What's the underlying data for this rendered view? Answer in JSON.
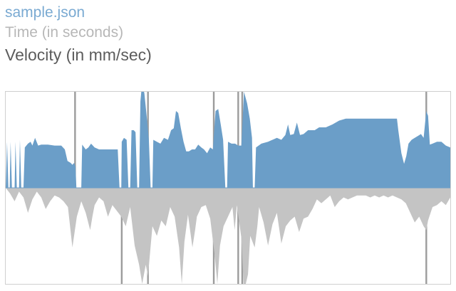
{
  "header": {
    "file_name": "sample.json",
    "x_label": "Time (in seconds)",
    "y_label": "Velocity (in mm/sec)"
  },
  "colors": {
    "positive": "#6b9ec8",
    "negative": "#c4c4c4",
    "spike": "#9c9c9c",
    "file_link": "#7aaad2"
  },
  "chart_data": {
    "type": "area",
    "title": "",
    "xlabel": "Time (in seconds)",
    "ylabel": "Velocity (in mm/sec)",
    "grid": false,
    "legend": "none",
    "xlim": [
      0,
      100
    ],
    "ylim": [
      -100,
      100
    ],
    "series": [
      {
        "sign": "positive",
        "points": [
          [
            0.0,
            0
          ],
          [
            0.3,
            48
          ],
          [
            0.6,
            0
          ],
          [
            0.9,
            0
          ],
          [
            1.1,
            48
          ],
          [
            1.4,
            0
          ],
          [
            2.0,
            0
          ],
          [
            2.2,
            48
          ],
          [
            2.5,
            0
          ],
          [
            3.0,
            0
          ],
          [
            3.2,
            50
          ],
          [
            3.5,
            0
          ],
          [
            4.0,
            0
          ],
          [
            4.3,
            42
          ],
          [
            5.0,
            46
          ],
          [
            5.6,
            48
          ],
          [
            6.0,
            44
          ],
          [
            6.6,
            52
          ],
          [
            7.3,
            44
          ],
          [
            8.0,
            45
          ],
          [
            9.5,
            45
          ],
          [
            11.0,
            44
          ],
          [
            12.5,
            44
          ],
          [
            13.3,
            40
          ],
          [
            13.9,
            28
          ],
          [
            14.6,
            26
          ],
          [
            15.0,
            24
          ],
          [
            15.4,
            26
          ],
          [
            15.7,
            22
          ],
          [
            15.9,
            0
          ],
          [
            17.0,
            0
          ],
          [
            17.2,
            45
          ],
          [
            18.0,
            40
          ],
          [
            18.6,
            42
          ],
          [
            19.2,
            46
          ],
          [
            20.0,
            42
          ],
          [
            21.0,
            40
          ],
          [
            22.5,
            40
          ],
          [
            24.0,
            40
          ],
          [
            25.2,
            40
          ],
          [
            25.6,
            0
          ],
          [
            26.0,
            0
          ],
          [
            26.1,
            48
          ],
          [
            26.6,
            52
          ],
          [
            27.2,
            50
          ],
          [
            27.6,
            0
          ],
          [
            28.0,
            0
          ],
          [
            28.3,
            60
          ],
          [
            28.8,
            60
          ],
          [
            29.2,
            58
          ],
          [
            29.6,
            0
          ],
          [
            30.0,
            0
          ],
          [
            30.3,
            90
          ],
          [
            30.7,
            110
          ],
          [
            31.2,
            98
          ],
          [
            31.7,
            75
          ],
          [
            32.2,
            50
          ],
          [
            32.6,
            0
          ],
          [
            33.0,
            0
          ],
          [
            33.2,
            50
          ],
          [
            34.0,
            48
          ],
          [
            34.8,
            46
          ],
          [
            35.6,
            52
          ],
          [
            36.5,
            50
          ],
          [
            37.2,
            60
          ],
          [
            37.8,
            62
          ],
          [
            38.3,
            80
          ],
          [
            38.8,
            78
          ],
          [
            39.4,
            62
          ],
          [
            40.0,
            48
          ],
          [
            40.6,
            38
          ],
          [
            41.2,
            38
          ],
          [
            41.9,
            40
          ],
          [
            42.6,
            40
          ],
          [
            43.3,
            45
          ],
          [
            44.0,
            42
          ],
          [
            44.6,
            40
          ],
          [
            45.3,
            36
          ],
          [
            46.0,
            42
          ],
          [
            46.6,
            40
          ],
          [
            47.2,
            80
          ],
          [
            47.8,
            82
          ],
          [
            48.4,
            65
          ],
          [
            48.9,
            50
          ],
          [
            49.4,
            0
          ],
          [
            49.8,
            0
          ],
          [
            50.0,
            48
          ],
          [
            50.8,
            46
          ],
          [
            51.6,
            46
          ],
          [
            52.3,
            44
          ],
          [
            53.0,
            44
          ],
          [
            53.6,
            100
          ],
          [
            54.3,
            88
          ],
          [
            54.9,
            72
          ],
          [
            55.4,
            52
          ],
          [
            55.6,
            0
          ],
          [
            56.0,
            0
          ],
          [
            56.3,
            42
          ],
          [
            57.5,
            46
          ],
          [
            59.0,
            48
          ],
          [
            60.0,
            50
          ],
          [
            61.0,
            52
          ],
          [
            62.0,
            50
          ],
          [
            62.9,
            55
          ],
          [
            63.5,
            66
          ],
          [
            64.0,
            55
          ],
          [
            64.8,
            56
          ],
          [
            65.5,
            68
          ],
          [
            66.2,
            55
          ],
          [
            67.0,
            56
          ],
          [
            68.0,
            60
          ],
          [
            69.5,
            60
          ],
          [
            70.5,
            63
          ],
          [
            72.0,
            63
          ],
          [
            73.5,
            66
          ],
          [
            75.0,
            70
          ],
          [
            76.5,
            72
          ],
          [
            78.0,
            72
          ],
          [
            80.0,
            72
          ],
          [
            82.0,
            72
          ],
          [
            84.0,
            72
          ],
          [
            86.0,
            72
          ],
          [
            88.0,
            72
          ],
          [
            88.3,
            60
          ],
          [
            89.0,
            36
          ],
          [
            89.6,
            25
          ],
          [
            90.1,
            33
          ],
          [
            90.6,
            46
          ],
          [
            91.3,
            50
          ],
          [
            92.0,
            52
          ],
          [
            92.7,
            54
          ],
          [
            93.4,
            56
          ],
          [
            94.0,
            52
          ],
          [
            94.6,
            80
          ],
          [
            95.0,
            75
          ],
          [
            95.4,
            45
          ],
          [
            96.0,
            46
          ],
          [
            97.0,
            48
          ],
          [
            98.0,
            48
          ],
          [
            99.0,
            44
          ],
          [
            100.0,
            42
          ]
        ]
      },
      {
        "sign": "negative",
        "points": [
          [
            0.0,
            0
          ],
          [
            1.0,
            -6
          ],
          [
            2.0,
            -14
          ],
          [
            3.0,
            -4
          ],
          [
            4.0,
            -10
          ],
          [
            5.0,
            -26
          ],
          [
            6.0,
            -12
          ],
          [
            7.0,
            -4
          ],
          [
            8.0,
            -10
          ],
          [
            9.0,
            -22
          ],
          [
            10.0,
            -14
          ],
          [
            11.0,
            -8
          ],
          [
            12.0,
            -10
          ],
          [
            13.0,
            -14
          ],
          [
            14.0,
            -20
          ],
          [
            15.0,
            -62
          ],
          [
            16.0,
            -30
          ],
          [
            17.0,
            -14
          ],
          [
            18.0,
            -26
          ],
          [
            19.0,
            -44
          ],
          [
            19.5,
            -30
          ],
          [
            20.0,
            -18
          ],
          [
            21.0,
            -10
          ],
          [
            22.0,
            -14
          ],
          [
            23.0,
            -30
          ],
          [
            24.0,
            -18
          ],
          [
            25.0,
            -24
          ],
          [
            26.0,
            -30
          ],
          [
            27.0,
            -40
          ],
          [
            28.0,
            -20
          ],
          [
            29.0,
            -60
          ],
          [
            30.0,
            -80
          ],
          [
            30.7,
            -100
          ],
          [
            31.5,
            -80
          ],
          [
            32.0,
            -92
          ],
          [
            33.0,
            -40
          ],
          [
            34.0,
            -50
          ],
          [
            35.0,
            -34
          ],
          [
            36.0,
            -40
          ],
          [
            37.0,
            -20
          ],
          [
            38.0,
            -30
          ],
          [
            39.0,
            -62
          ],
          [
            39.6,
            -100
          ],
          [
            40.2,
            -56
          ],
          [
            41.0,
            -28
          ],
          [
            42.0,
            -62
          ],
          [
            42.6,
            -44
          ],
          [
            43.0,
            -30
          ],
          [
            44.0,
            -20
          ],
          [
            45.0,
            -18
          ],
          [
            46.0,
            -32
          ],
          [
            47.0,
            -70
          ],
          [
            47.6,
            -100
          ],
          [
            48.2,
            -60
          ],
          [
            49.0,
            -40
          ],
          [
            50.0,
            -30
          ],
          [
            51.0,
            -20
          ],
          [
            51.5,
            -44
          ],
          [
            52.0,
            -18
          ],
          [
            53.0,
            -52
          ],
          [
            53.5,
            -100
          ],
          [
            54.0,
            -100
          ],
          [
            54.5,
            -90
          ],
          [
            55.0,
            -50
          ],
          [
            56.0,
            -62
          ],
          [
            56.6,
            -40
          ],
          [
            57.0,
            -20
          ],
          [
            58.0,
            -36
          ],
          [
            59.0,
            -60
          ],
          [
            60.0,
            -38
          ],
          [
            61.0,
            -26
          ],
          [
            62.0,
            -58
          ],
          [
            63.0,
            -40
          ],
          [
            64.0,
            -34
          ],
          [
            65.0,
            -30
          ],
          [
            66.0,
            -46
          ],
          [
            67.0,
            -32
          ],
          [
            68.0,
            -30
          ],
          [
            69.0,
            -22
          ],
          [
            70.0,
            -12
          ],
          [
            71.0,
            -16
          ],
          [
            72.0,
            -12
          ],
          [
            73.0,
            -8
          ],
          [
            74.0,
            -20
          ],
          [
            75.0,
            -14
          ],
          [
            76.0,
            -10
          ],
          [
            77.0,
            -12
          ],
          [
            78.0,
            -10
          ],
          [
            79.0,
            -8
          ],
          [
            80.0,
            -8
          ],
          [
            81.0,
            -8
          ],
          [
            82.0,
            -10
          ],
          [
            83.0,
            -8
          ],
          [
            84.0,
            -10
          ],
          [
            85.0,
            -8
          ],
          [
            86.0,
            -10
          ],
          [
            87.0,
            -8
          ],
          [
            88.0,
            -10
          ],
          [
            89.0,
            -12
          ],
          [
            90.0,
            -16
          ],
          [
            91.0,
            -26
          ],
          [
            92.0,
            -36
          ],
          [
            93.0,
            -30
          ],
          [
            94.0,
            -40
          ],
          [
            94.6,
            -44
          ],
          [
            95.0,
            -34
          ],
          [
            96.0,
            -20
          ],
          [
            97.0,
            -18
          ],
          [
            98.0,
            -14
          ],
          [
            99.0,
            -18
          ],
          [
            100.0,
            -10
          ]
        ]
      }
    ],
    "spikes": [
      {
        "x": 15.6,
        "top": 100,
        "bottom": 0
      },
      {
        "x": 26.1,
        "top": 0,
        "bottom": -100
      },
      {
        "x": 32.0,
        "top": 100,
        "bottom": -100
      },
      {
        "x": 46.8,
        "top": 100,
        "bottom": -100
      },
      {
        "x": 52.3,
        "top": 100,
        "bottom": -100
      },
      {
        "x": 53.2,
        "top": 100,
        "bottom": -100
      },
      {
        "x": 94.6,
        "top": 100,
        "bottom": -100
      }
    ]
  }
}
